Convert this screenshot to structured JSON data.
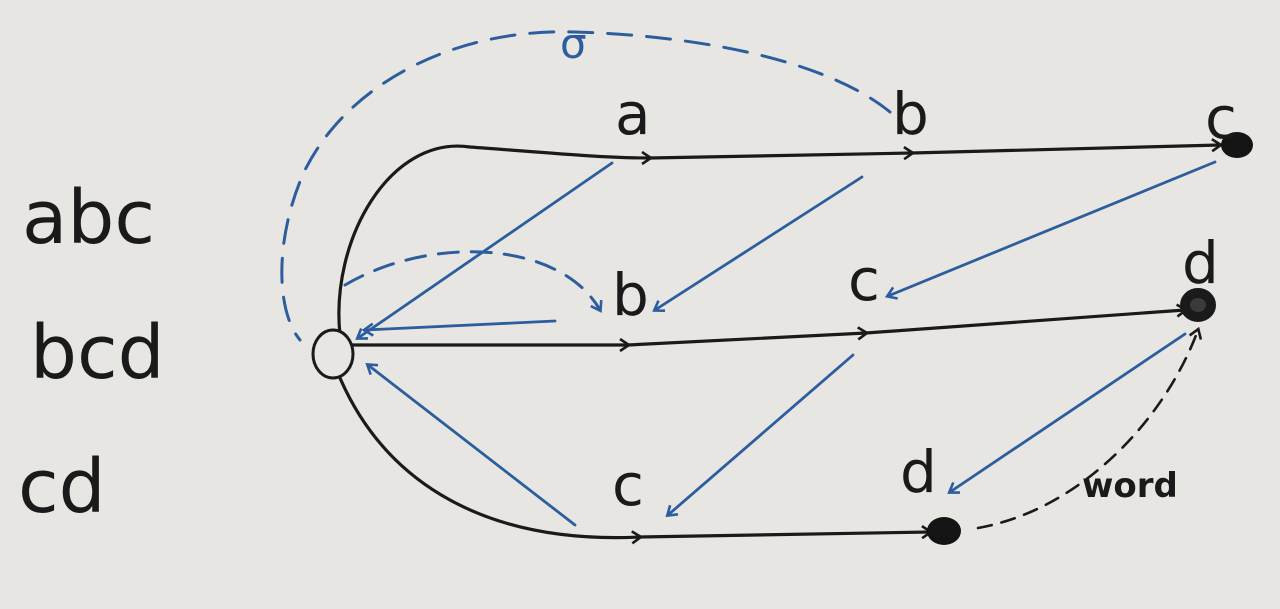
{
  "words": [
    "abc",
    "bcd",
    "cd"
  ],
  "edge_labels": {
    "trie_a": "a",
    "trie_ab": "b",
    "trie_abc": "c",
    "trie_b": "b",
    "trie_bc": "c",
    "trie_bcd": "d",
    "trie_c": "c",
    "trie_cd": "d",
    "suffix_link": "σ"
  },
  "dictionary_link_label": "word",
  "colors": {
    "board": "#e8e6e2",
    "black_ink": "#1a1a1a",
    "blue_ink": "#2c5d9e"
  }
}
